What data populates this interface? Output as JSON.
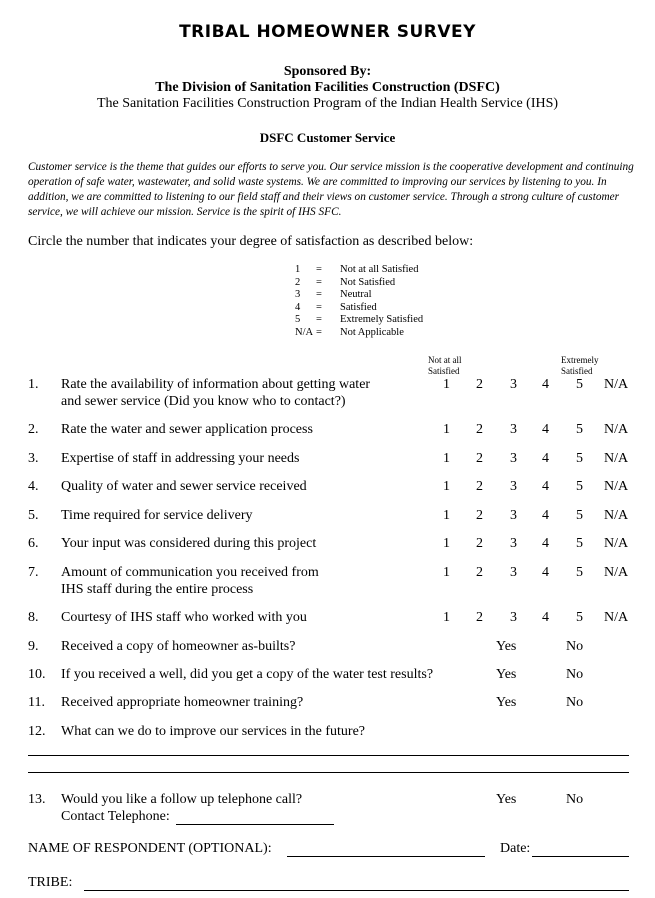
{
  "title": "TRIBAL HOMEOWNER SURVEY",
  "sponsored_by": "Sponsored By:",
  "division": "The Division of Sanitation Facilities Construction (DSFC)",
  "program": "The Sanitation Facilities Construction Program of the Indian Health Service (IHS)",
  "section_title": "DSFC Customer Service",
  "intro": "Customer service is the theme that guides our efforts to serve you.  Our service mission is the cooperative development and continuing operation of safe water, wastewater, and solid waste systems.  We are committed to improving our services by listening to you.  In addition, we are committed to listening to our field staff and their views on customer service.  Through a strong culture of customer service, we will achieve our mission.  Service is the spirit of IHS SFC.",
  "instruction": "Circle the number that indicates your degree of satisfaction as described below:",
  "legend": [
    {
      "k": "1",
      "eq": "=",
      "v": "Not at all Satisfied"
    },
    {
      "k": "2",
      "eq": "=",
      "v": "Not Satisfied"
    },
    {
      "k": "3",
      "eq": "=",
      "v": "Neutral"
    },
    {
      "k": "4",
      "eq": "=",
      "v": "Satisfied"
    },
    {
      "k": "5",
      "eq": "=",
      "v": "Extremely Satisfied"
    },
    {
      "k": "N/A",
      "eq": "=",
      "v": "Not Applicable"
    }
  ],
  "scale_header": {
    "low": "Not at all\nSatisfied",
    "high": "Extremely\nSatisfied"
  },
  "scale": [
    "1",
    "2",
    "3",
    "4",
    "5",
    "N/A"
  ],
  "questions": [
    {
      "n": "1.",
      "text": "Rate the availability of information about getting water",
      "text2": "and sewer service (Did you know who to contact?)"
    },
    {
      "n": "2.",
      "text": "Rate the water and sewer application process"
    },
    {
      "n": "3.",
      "text": "Expertise of staff in addressing your needs"
    },
    {
      "n": "4.",
      "text": "Quality of water and sewer service received"
    },
    {
      "n": "5.",
      "text": "Time required for service delivery"
    },
    {
      "n": "6.",
      "text": "Your input was considered during this project"
    },
    {
      "n": "7.",
      "text": "Amount of communication you received from",
      "text2": "IHS staff during the entire process"
    },
    {
      "n": "8.",
      "text": "Courtesy of IHS staff who worked with you"
    }
  ],
  "yesno": [
    {
      "n": "9.",
      "text": "Received a copy of homeowner as-builts?"
    },
    {
      "n": "10.",
      "text": "If you received a well, did you get a copy of the water test results?"
    },
    {
      "n": "11.",
      "text": "Received appropriate homeowner training?"
    }
  ],
  "q12": {
    "n": "12.",
    "text": "What can we do to improve our services in the future?"
  },
  "q13": {
    "n": "13.",
    "text": "Would you like a follow up telephone call?",
    "contact": "Contact Telephone:"
  },
  "yes": "Yes",
  "no": "No",
  "name_label": "NAME OF RESPONDENT (OPTIONAL):",
  "date_label": "Date:",
  "tribe_label": "TRIBE:"
}
